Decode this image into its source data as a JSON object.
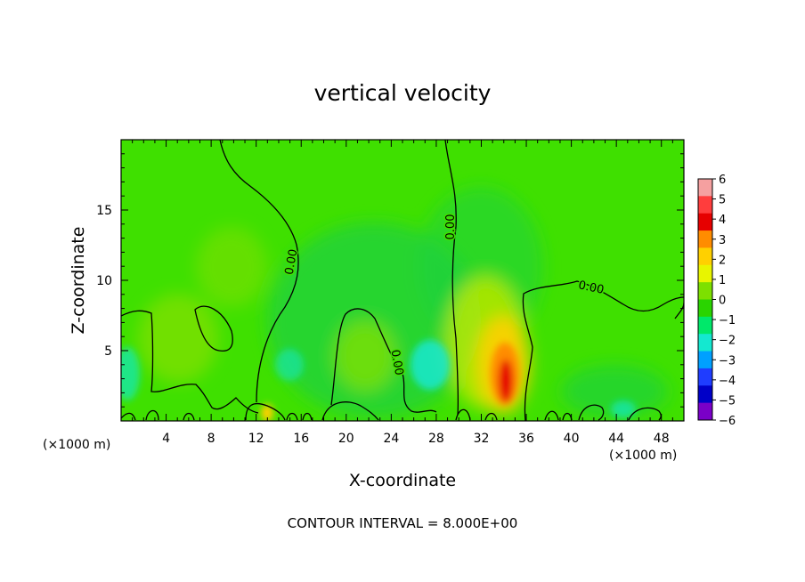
{
  "chart_data": {
    "type": "heatmap",
    "title": "vertical velocity",
    "xlabel": "X-coordinate",
    "ylabel": "Z-coordinate",
    "x_unit_left": "(×1000 m)",
    "x_unit_right": "(×1000 m)",
    "xlim": [
      0,
      50
    ],
    "ylim": [
      0,
      20
    ],
    "x_ticks": [
      4,
      8,
      12,
      16,
      20,
      24,
      28,
      32,
      36,
      40,
      44,
      48
    ],
    "y_ticks": [
      5,
      10,
      15
    ],
    "colorbar": {
      "min": -6,
      "max": 6,
      "ticks": [
        "6",
        "5",
        "4",
        "3",
        "2",
        "1",
        "0",
        "−1",
        "−2",
        "−3",
        "−4",
        "−5",
        "−6"
      ],
      "colors": [
        "#f5a0a0",
        "#ff3d3d",
        "#e60000",
        "#ff8c00",
        "#ffd000",
        "#e8f500",
        "#7de000",
        "#2ad400",
        "#00e86a",
        "#14e8d0",
        "#00a0ff",
        "#1f3dff",
        "#0000c8",
        "#7a00c8"
      ]
    },
    "contour_label": "0.00",
    "contour_interval_text": "CONTOUR INTERVAL = 8.000E+00",
    "features": [
      {
        "x": 34,
        "z": 2.5,
        "value": 5,
        "kind": "updraft"
      },
      {
        "x": 27.5,
        "z": 3.5,
        "value": -1.5,
        "kind": "downdraft"
      },
      {
        "x": 13,
        "z": 0.5,
        "value": 3,
        "kind": "updraft"
      },
      {
        "x": 1,
        "z": 2.5,
        "value": -1.2,
        "kind": "downdraft"
      },
      {
        "x": 5,
        "z": 5,
        "value": 1.2,
        "kind": "updraft"
      }
    ]
  }
}
